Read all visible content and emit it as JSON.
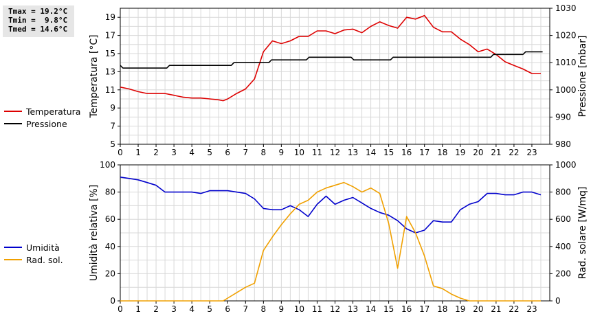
{
  "stats": {
    "tmax": "Tmax = 19.2°C",
    "tmin": "Tmin =  9.8°C",
    "tmed": "Tmed = 14.6°C"
  },
  "colors": {
    "temperatura": "#dd0000",
    "pressione": "#000000",
    "umidita": "#0000cc",
    "radsol": "#f0a000",
    "grid": "#d8d8d8"
  },
  "chart_data": [
    {
      "type": "line",
      "xlim": [
        0,
        24
      ],
      "x_ticks": [
        "0",
        "1",
        "2",
        "3",
        "4",
        "5",
        "6",
        "7",
        "8",
        "9",
        "10",
        "11",
        "12",
        "13",
        "14",
        "15",
        "16",
        "17",
        "18",
        "19",
        "20",
        "21",
        "22",
        "23"
      ],
      "ylabel": "Temperatura [°C]",
      "ylim": [
        5,
        20
      ],
      "y_ticks": [
        "5",
        "7",
        "9",
        "11",
        "13",
        "15",
        "17",
        "19"
      ],
      "y2label": "Pressione [mbar]",
      "y2lim": [
        980,
        1030
      ],
      "y2_ticks": [
        "980",
        "990",
        "1000",
        "1010",
        "1020",
        "1030"
      ],
      "grid": true,
      "legend": "left",
      "series": [
        {
          "name": "Temperatura",
          "axis": "left",
          "x": [
            0,
            0.5,
            1,
            1.5,
            2,
            2.5,
            3,
            3.5,
            4,
            4.5,
            5,
            5.5,
            5.75,
            6,
            6.5,
            7,
            7.5,
            8,
            8.5,
            9,
            9.5,
            10,
            10.5,
            11,
            11.5,
            12,
            12.5,
            13,
            13.5,
            14,
            14.5,
            15,
            15.5,
            16,
            16.5,
            17,
            17.5,
            18,
            18.5,
            19,
            19.5,
            20,
            20.5,
            21,
            21.5,
            22,
            22.5,
            23,
            23.5
          ],
          "values": [
            11.3,
            11.1,
            10.8,
            10.6,
            10.6,
            10.6,
            10.4,
            10.2,
            10.1,
            10.1,
            10.0,
            9.9,
            9.8,
            10.0,
            10.6,
            11.1,
            12.2,
            15.2,
            16.4,
            16.1,
            16.4,
            16.9,
            16.9,
            17.5,
            17.5,
            17.2,
            17.6,
            17.7,
            17.3,
            18.0,
            18.5,
            18.1,
            17.8,
            19.0,
            18.8,
            19.2,
            17.9,
            17.4,
            17.4,
            16.6,
            16.0,
            15.2,
            15.5,
            14.9,
            14.1,
            13.7,
            13.3,
            12.8,
            12.8
          ]
        },
        {
          "name": "Pressione",
          "axis": "right",
          "x": [
            0,
            0.15,
            2.6,
            2.75,
            6.2,
            6.35,
            8.3,
            8.45,
            10.4,
            10.55,
            12.9,
            13.05,
            14.6,
            14.75,
            15.1,
            15.25,
            20.1,
            20.25,
            20.7,
            20.85,
            22.5,
            22.65,
            23.6
          ],
          "values": [
            1009,
            1008,
            1008,
            1009,
            1009,
            1010,
            1010,
            1011,
            1011,
            1012,
            1012,
            1011,
            1011,
            1011,
            1011,
            1012,
            1012,
            1012,
            1012,
            1013,
            1013,
            1014,
            1014
          ]
        }
      ]
    },
    {
      "type": "line",
      "xlim": [
        0,
        24
      ],
      "x_ticks": [
        "0",
        "1",
        "2",
        "3",
        "4",
        "5",
        "6",
        "7",
        "8",
        "9",
        "10",
        "11",
        "12",
        "13",
        "14",
        "15",
        "16",
        "17",
        "18",
        "19",
        "20",
        "21",
        "22",
        "23"
      ],
      "ylabel": "Umidità relativa [%]",
      "ylim": [
        0,
        100
      ],
      "y_ticks": [
        "0",
        "20",
        "40",
        "60",
        "80",
        "100"
      ],
      "y2label": "Rad. solare [W/mq]",
      "y2lim": [
        0,
        1000
      ],
      "y2_ticks": [
        "0",
        "200",
        "400",
        "600",
        "800",
        "1000"
      ],
      "grid": true,
      "legend": "left",
      "series": [
        {
          "name": "Umidità",
          "axis": "left",
          "x": [
            0,
            0.5,
            1,
            1.5,
            2,
            2.5,
            3,
            3.5,
            4,
            4.5,
            5,
            5.5,
            6,
            6.5,
            7,
            7.5,
            8,
            8.5,
            9,
            9.5,
            10,
            10.5,
            11,
            11.5,
            12,
            12.5,
            13,
            13.5,
            14,
            14.5,
            15,
            15.5,
            16,
            16.5,
            17,
            17.5,
            18,
            18.5,
            19,
            19.5,
            20,
            20.5,
            21,
            21.5,
            22,
            22.5,
            23,
            23.5
          ],
          "values": [
            91,
            90,
            89,
            87,
            85,
            80,
            80,
            80,
            80,
            79,
            81,
            81,
            81,
            80,
            79,
            75,
            68,
            67,
            67,
            70,
            67,
            62,
            71,
            77,
            71,
            74,
            76,
            72,
            68,
            65,
            63,
            59,
            53,
            50,
            52,
            59,
            58,
            58,
            67,
            71,
            73,
            79,
            79,
            78,
            78,
            80,
            80,
            78
          ]
        },
        {
          "name": "Rad. sol.",
          "axis": "right",
          "x": [
            0,
            0.5,
            1,
            1.5,
            2,
            2.5,
            3,
            3.5,
            4,
            4.5,
            5,
            5.5,
            5.75,
            6,
            6.5,
            7,
            7.5,
            8,
            8.5,
            9,
            9.5,
            10,
            10.5,
            11,
            11.5,
            12,
            12.5,
            13,
            13.5,
            14,
            14.5,
            15,
            15.5,
            16,
            16.5,
            17,
            17.5,
            18,
            18.5,
            19,
            19.5,
            20,
            20.5,
            21,
            21.5,
            22,
            22.5,
            23,
            23.5
          ],
          "values": [
            0,
            0,
            0,
            0,
            0,
            0,
            0,
            0,
            0,
            0,
            0,
            0,
            0,
            20,
            60,
            100,
            130,
            370,
            470,
            560,
            640,
            710,
            740,
            800,
            830,
            850,
            870,
            840,
            800,
            830,
            790,
            570,
            240,
            620,
            500,
            330,
            110,
            90,
            50,
            20,
            0,
            0,
            0,
            0,
            0,
            0,
            0,
            0,
            0
          ]
        }
      ]
    }
  ]
}
